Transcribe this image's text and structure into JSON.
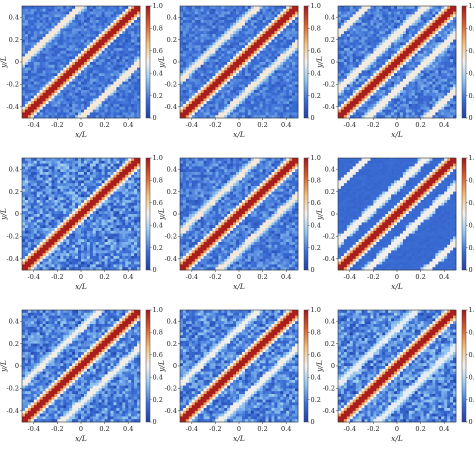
{
  "chart_data": {
    "type": "heatmap",
    "layout": {
      "rows": 3,
      "cols": 3
    },
    "xlabel": "x/L",
    "ylabel": "y/L",
    "xticks": [
      "-0.4",
      "-0.2",
      "0",
      "0.2",
      "0.4"
    ],
    "yticks": [
      "-0.4",
      "-0.2",
      "0",
      "0.2",
      "0.4"
    ],
    "xtick_values": [
      -0.4,
      -0.2,
      0,
      0.2,
      0.4
    ],
    "ytick_values": [
      -0.4,
      -0.2,
      0,
      0.2,
      0.4
    ],
    "xlim": [
      -0.5,
      0.5
    ],
    "ylim": [
      -0.5,
      0.5
    ],
    "colorbar": {
      "range": [
        0,
        1.0
      ],
      "ticks": [
        "0",
        "0.2",
        "0.4",
        "0.6",
        "0.8",
        "1.0"
      ],
      "tick_values": [
        0,
        0.2,
        0.4,
        0.6,
        0.8,
        1.0
      ],
      "colormap": [
        "#1f3fa8",
        "#3b6fd6",
        "#8fc4f0",
        "#f2f2f2",
        "#f5c07a",
        "#d9622b",
        "#a3151a"
      ]
    },
    "panels": [
      {
        "row": 0,
        "col": 0,
        "band_offsets": [
          -0.5,
          0.5
        ],
        "band_strength": 0.7,
        "noise": 0.25
      },
      {
        "row": 0,
        "col": 1,
        "band_offsets": [
          -0.33,
          0.33
        ],
        "band_strength": 0.7,
        "noise": 0.25
      },
      {
        "row": 0,
        "col": 2,
        "band_offsets": [
          -0.25,
          0.25,
          -0.75,
          0.75
        ],
        "band_strength": 0.6,
        "noise": 0.3
      },
      {
        "row": 1,
        "col": 0,
        "band_offsets": [],
        "band_strength": 0.0,
        "noise": 0.45
      },
      {
        "row": 1,
        "col": 1,
        "band_offsets": [
          -0.33,
          0.33
        ],
        "band_strength": 0.7,
        "noise": 0.3
      },
      {
        "row": 1,
        "col": 2,
        "band_offsets": [
          -0.25,
          0.25,
          -0.75,
          0.75
        ],
        "band_strength": 0.5,
        "noise": 0.05
      },
      {
        "row": 2,
        "col": 0,
        "band_offsets": [
          -0.33,
          0.33
        ],
        "band_strength": 0.55,
        "noise": 0.4
      },
      {
        "row": 2,
        "col": 1,
        "band_offsets": [
          -0.33,
          0.33
        ],
        "band_strength": 0.5,
        "noise": 0.4
      },
      {
        "row": 2,
        "col": 2,
        "band_offsets": [
          -0.33,
          0.33
        ],
        "band_strength": 0.25,
        "noise": 0.45
      }
    ]
  }
}
